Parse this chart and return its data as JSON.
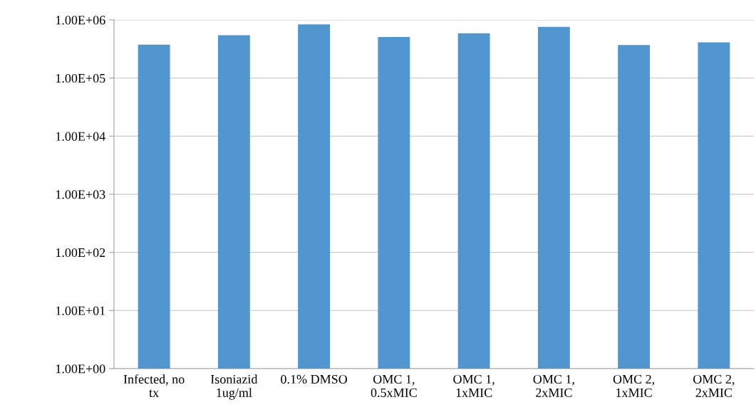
{
  "chart_data": {
    "type": "bar",
    "categories": [
      "Infected, no\ntx",
      "Isoniazid\n1ug/ml",
      "0.1% DMSO",
      "OMC 1,\n0.5xMIC",
      "OMC 1,\n1xMIC",
      "OMC 1,\n2xMIC",
      "OMC 2,\n1xMIC",
      "OMC 2,\n2xMIC"
    ],
    "values": [
      376000,
      546000,
      840000,
      510000,
      590000,
      760000,
      370000,
      410000
    ],
    "color": "#5296d0",
    "log": true,
    "ylim": [
      1,
      1000000
    ],
    "yticks": [
      {
        "value": 1,
        "label": "1.00E+00"
      },
      {
        "value": 10,
        "label": "1.00E+01"
      },
      {
        "value": 100,
        "label": "1.00E+02"
      },
      {
        "value": 1000,
        "label": "1.00E+03"
      },
      {
        "value": 10000,
        "label": "1.00E+04"
      },
      {
        "value": 100000,
        "label": "1.00E+05"
      },
      {
        "value": 1000000,
        "label": "1.00E+06"
      }
    ],
    "grid": "y"
  }
}
